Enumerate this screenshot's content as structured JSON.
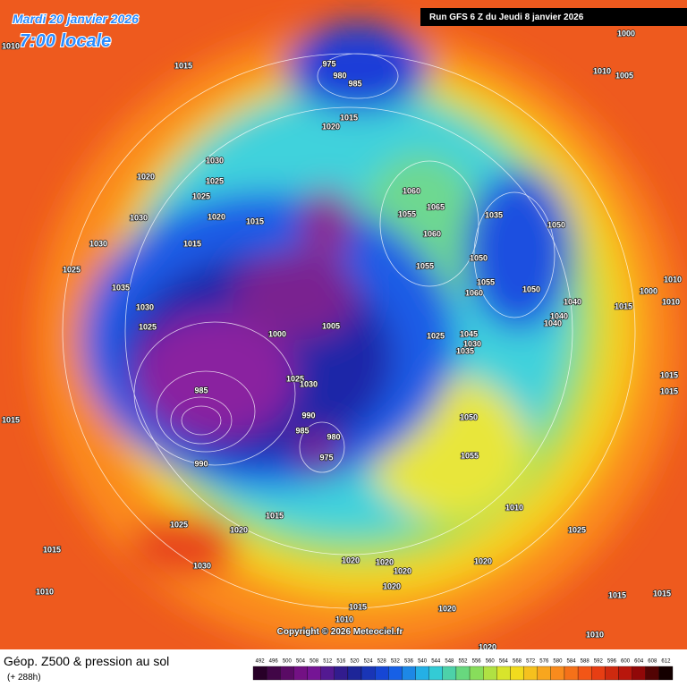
{
  "header": {
    "valid_date": "Mardi 20 janvier 2026",
    "local_time": "7:00 locale",
    "run": "Run GFS 6 Z du Jeudi 8 janvier 2026"
  },
  "footer": {
    "title": "Géop. Z500 & pression au sol",
    "lead": "(+ 288h)",
    "copyright": "Copyright © 2026 Meteociel.fr"
  },
  "color_scale": {
    "levels": [
      492,
      496,
      500,
      504,
      508,
      512,
      516,
      520,
      524,
      528,
      532,
      536,
      540,
      544,
      548,
      552,
      556,
      560,
      564,
      568,
      572,
      576,
      580,
      584,
      588,
      592,
      596,
      600,
      604,
      608,
      612
    ]
  },
  "pressure_labels": [
    "1015",
    "975",
    "980",
    "985",
    "1000",
    "1010",
    "1005",
    "1020",
    "1015",
    "1030",
    "1020",
    "1025",
    "1025",
    "1020",
    "1015",
    "1030",
    "1030",
    "1015",
    "1025",
    "1035",
    "1030",
    "1025",
    "1060",
    "1055",
    "1065",
    "1060",
    "1055",
    "1050",
    "1035",
    "1050",
    "1055",
    "1060",
    "1050",
    "1040",
    "1040",
    "1040",
    "1005",
    "1000",
    "1025",
    "1045",
    "1030",
    "1035",
    "1025",
    "1030",
    "985",
    "990",
    "985",
    "980",
    "975",
    "990",
    "1050",
    "1055",
    "1015",
    "1025",
    "1020",
    "1030",
    "1015",
    "1010",
    "1020",
    "1020",
    "1020",
    "1020",
    "1020",
    "1025",
    "1010",
    "1015",
    "1015",
    "1015",
    "1010",
    "1020",
    "1010",
    "1020",
    "1015",
    "1015",
    "1010",
    "1010",
    "1000",
    "1015",
    "1015",
    "1010"
  ]
}
